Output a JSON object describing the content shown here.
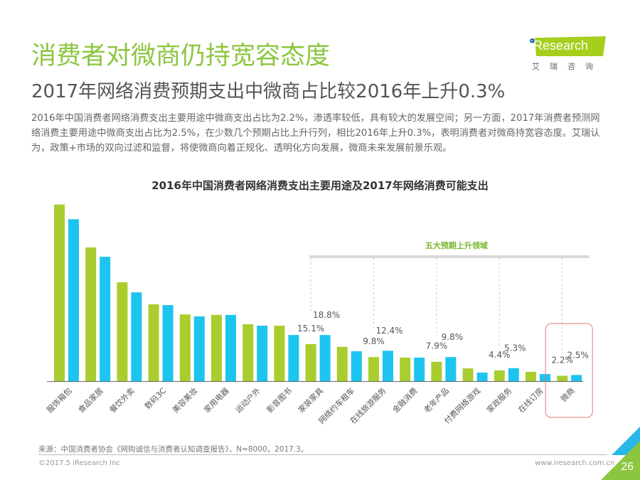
{
  "header": {
    "title": "消费者对微商仍持宽容态度",
    "subtitle": "2017年网络消费预期支出中微商占比较2016年上升0.3%",
    "logo_text": "iResearch",
    "logo_cn": "艾瑞咨询"
  },
  "description": "2016年中国消费者网络消费支出主要用途中微商支出占比为2.2%，渗透率较低，具有较大的发展空间；另一方面，2017年消费者预测网络消费主要用途中微商支出占比为2.5%，在少数几个预期占比上升行列，相比2016年上升0.3%，表明消费者对微商持宽容态度。艾瑞认为，政策+市场的双向过滤和监督，将使微商向着正规化、透明化方向发展，微商未来发展前景乐观。",
  "colors": {
    "series_2016": "#a9cd2f",
    "series_2017": "#1dc4ef",
    "title_green": "#8cc63f",
    "highlight_box": "#e07a7a"
  },
  "chart_data": {
    "type": "bar",
    "title": "2016年中国消费者网络消费支出主要用途及2017年网络消费可能支出",
    "xlabel": "",
    "ylabel": "",
    "ylim": [
      0,
      75
    ],
    "grid": false,
    "legend": "none",
    "categories": [
      "服饰箱包",
      "食品家居",
      "餐饮外卖",
      "数码3C",
      "美容美妆",
      "家用电器",
      "运动户外",
      "影音图书",
      "家装家具",
      "网络约车租车",
      "在线旅游服务",
      "金融消费",
      "老年产品",
      "付费网络游戏",
      "家政服务",
      "在线订房",
      "微商"
    ],
    "series": [
      {
        "name": "2016",
        "values": [
          72.0,
          54.5,
          40.3,
          31.3,
          27.2,
          27.0,
          23.2,
          22.6,
          15.1,
          14.0,
          9.8,
          9.6,
          7.9,
          5.2,
          4.4,
          3.8,
          2.2
        ]
      },
      {
        "name": "2017",
        "values": [
          66.0,
          50.7,
          36.2,
          31.0,
          26.4,
          27.0,
          22.6,
          18.8,
          18.8,
          12.2,
          12.4,
          9.6,
          9.8,
          3.5,
          5.3,
          2.9,
          2.5
        ]
      }
    ],
    "data_labels": [
      {
        "category": "家装家具",
        "label_2016": "15.1%",
        "label_2017": "18.8%"
      },
      {
        "category": "在线旅游服务",
        "label_2016": "9.8%",
        "label_2017": "12.4%"
      },
      {
        "category": "老年产品",
        "label_2016": "7.9%",
        "label_2017": "9.8%"
      },
      {
        "category": "家政服务",
        "label_2016": "4.4%",
        "label_2017": "5.3%"
      },
      {
        "category": "微商",
        "label_2016": "2.2%",
        "label_2017": "2.5%"
      }
    ],
    "annotation": {
      "text": "五大预期上升领域",
      "categories": [
        "家装家具",
        "在线旅游服务",
        "老年产品",
        "家政服务",
        "微商"
      ]
    },
    "highlight_category": "微商"
  },
  "footer": {
    "source": "来源：中国消费者协会《网购诚信与消费者认知调查报告》，N=8000，2017.3。",
    "copyright": "©2017.5 iResearch Inc",
    "website": "www.iresearch.com.cn",
    "page_number": "26"
  }
}
